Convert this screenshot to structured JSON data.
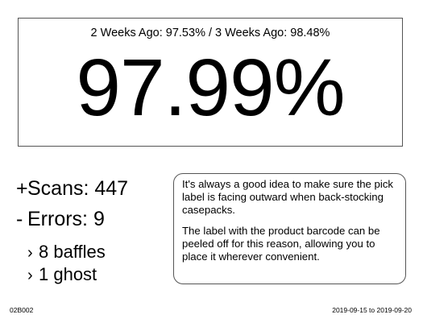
{
  "score": {
    "comparison_text": "2 Weeks Ago: 97.53% / 3 Weeks Ago: 98.48%",
    "value": "97.99%"
  },
  "stats": {
    "scans": {
      "sign": "+",
      "text": "Scans: 447"
    },
    "errors": {
      "sign": "-",
      "text": "Errors: 9"
    },
    "breakdown": [
      {
        "marker": "›",
        "text": "8 baffles"
      },
      {
        "marker": "›",
        "text": "1 ghost"
      }
    ]
  },
  "tip": {
    "paragraphs": [
      "It's always a good idea to make sure the pick label is facing outward when back-stocking casepacks.",
      "The label with the product barcode can be peeled off for this reason, allowing you to place it wherever convenient."
    ]
  },
  "footer": {
    "id": "02B002",
    "date_range": "2019-09-15 to 2019-09-20"
  }
}
